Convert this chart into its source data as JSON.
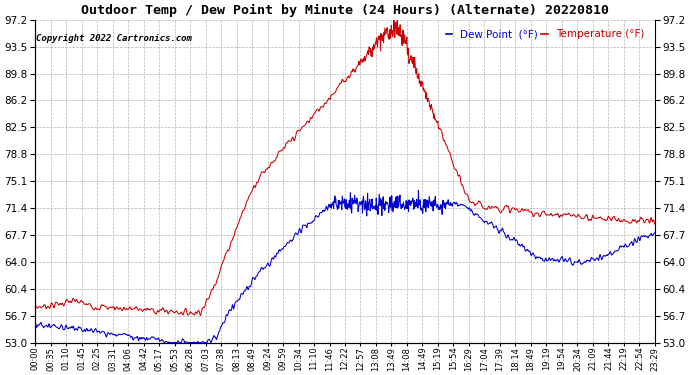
{
  "title": "Outdoor Temp / Dew Point by Minute (24 Hours) (Alternate) 20220810",
  "copyright": "Copyright 2022 Cartronics.com",
  "legend_dew": "Dew Point  (°F)",
  "legend_temp": "Temperature (°F)",
  "temp_color": "#cc0000",
  "dew_color": "#0000cc",
  "bg_color": "#ffffff",
  "grid_color": "#aaaaaa",
  "yticks": [
    53.0,
    56.7,
    60.4,
    64.0,
    67.7,
    71.4,
    75.1,
    78.8,
    82.5,
    86.2,
    89.8,
    93.5,
    97.2
  ],
  "ylim": [
    53.0,
    97.2
  ],
  "xtick_labels": [
    "00:00",
    "00:35",
    "01:10",
    "01:45",
    "02:25",
    "03:31",
    "04:06",
    "04:42",
    "05:17",
    "05:53",
    "06:28",
    "07:03",
    "07:38",
    "08:13",
    "08:49",
    "09:24",
    "09:59",
    "10:34",
    "11:10",
    "11:46",
    "12:22",
    "12:57",
    "13:08",
    "13:49",
    "14:08",
    "14:49",
    "15:19",
    "15:54",
    "16:29",
    "17:04",
    "17:39",
    "18:14",
    "18:49",
    "19:19",
    "19:54",
    "20:34",
    "21:09",
    "21:44",
    "22:19",
    "22:54",
    "23:29"
  ],
  "n_minutes": 1440
}
